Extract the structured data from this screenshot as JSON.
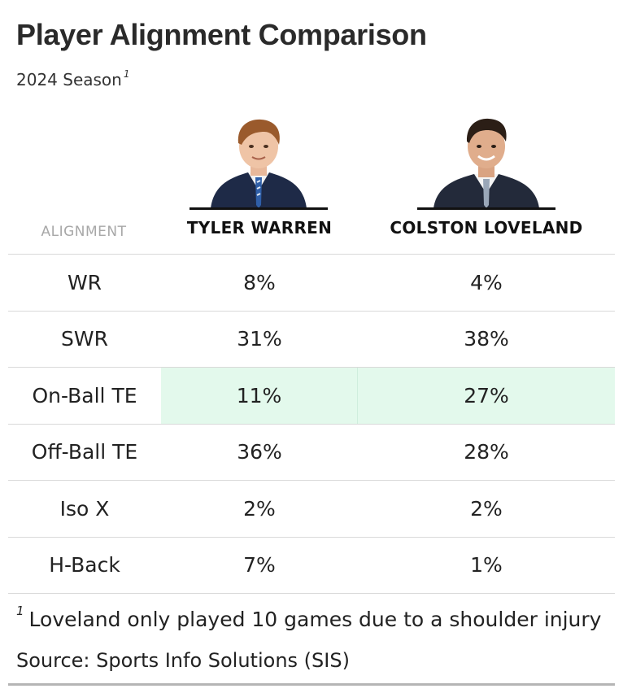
{
  "title": "Player Alignment Comparison",
  "subtitle": "2024 Season",
  "subtitle_marker": "1",
  "colors": {
    "highlight": "#e3f9ec",
    "rule": "#d9d9d9",
    "header_muted": "#a8a8a8"
  },
  "chart_data": {
    "type": "table",
    "column_header": "ALIGNMENT",
    "players": [
      {
        "name": "TYLER WARREN",
        "photo": "tyler-warren-photo"
      },
      {
        "name": "COLSTON LOVELAND",
        "photo": "colston-loveland-photo"
      }
    ],
    "rows": [
      {
        "alignment": "WR",
        "values": [
          "8%",
          "4%"
        ],
        "highlighted": false
      },
      {
        "alignment": "SWR",
        "values": [
          "31%",
          "38%"
        ],
        "highlighted": false
      },
      {
        "alignment": "On-Ball TE",
        "values": [
          "11%",
          "27%"
        ],
        "highlighted": true
      },
      {
        "alignment": "Off-Ball TE",
        "values": [
          "36%",
          "28%"
        ],
        "highlighted": false
      },
      {
        "alignment": "Iso X",
        "values": [
          "2%",
          "2%"
        ],
        "highlighted": false
      },
      {
        "alignment": "H-Back",
        "values": [
          "7%",
          "1%"
        ],
        "highlighted": false
      }
    ]
  },
  "footnote": {
    "marker": "1",
    "text": "Loveland only played 10 games due to a shoulder injury"
  },
  "source": "Source: Sports Info Solutions (SIS)"
}
